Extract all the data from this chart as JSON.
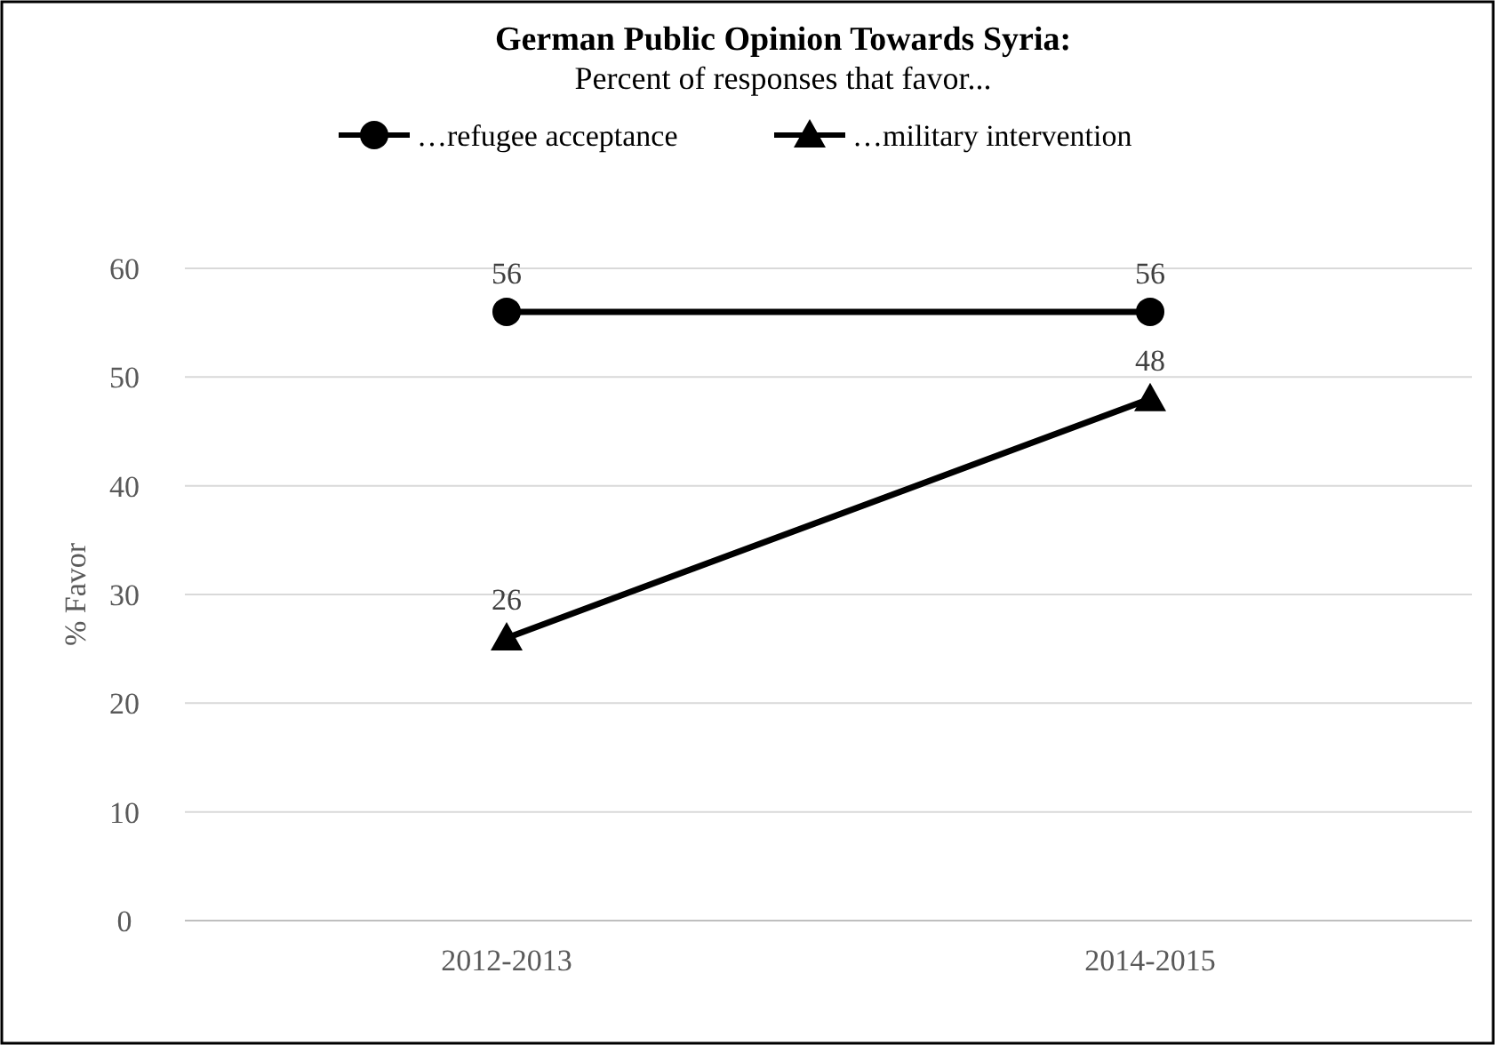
{
  "chart_data": {
    "type": "line",
    "title": "German Public Opinion Towards Syria:",
    "subtitle": "Percent of responses that favor...",
    "ylabel": "% Favor",
    "categories": [
      "2012-2013",
      "2014-2015"
    ],
    "series": [
      {
        "name": "…refugee acceptance",
        "color": "#000000",
        "values": [
          56,
          56
        ],
        "marker": "circle"
      },
      {
        "name": "…military intervention",
        "color": "#000000",
        "values": [
          26,
          48
        ],
        "marker": "triangle"
      }
    ],
    "ylim": [
      0,
      60
    ],
    "yticks": [
      0,
      10,
      20,
      30,
      40,
      50,
      60
    ],
    "grid": "y",
    "legend": "top",
    "data_labels": true,
    "line_style": "solid"
  }
}
